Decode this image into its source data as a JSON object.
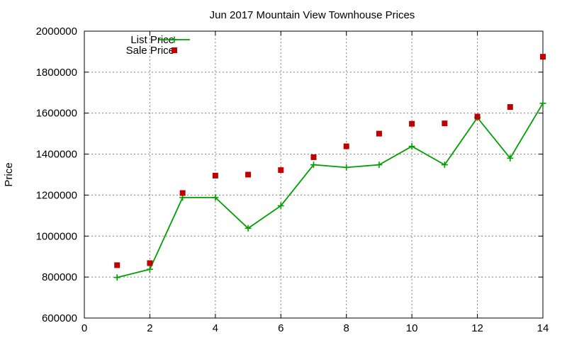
{
  "chart_data": {
    "type": "line",
    "title": "Jun 2017 Mountain View Townhouse Prices",
    "xlabel": "",
    "ylabel": "Price",
    "xlim": [
      0,
      14
    ],
    "ylim": [
      600000,
      2000000
    ],
    "x_ticks": [
      0,
      2,
      4,
      6,
      8,
      10,
      12,
      14
    ],
    "y_ticks": [
      600000,
      800000,
      1000000,
      1200000,
      1400000,
      1600000,
      1800000,
      2000000
    ],
    "grid": true,
    "legend_position": "top-left",
    "series": [
      {
        "name": "List Price",
        "style": "line-with-plus-markers",
        "color": "#00a000",
        "x": [
          1,
          2,
          3,
          4,
          5,
          6,
          7,
          8,
          9,
          10,
          11,
          12,
          13,
          14
        ],
        "y": [
          798000,
          838000,
          1188000,
          1188000,
          1038000,
          1148000,
          1348000,
          1335000,
          1348000,
          1438000,
          1348000,
          1578000,
          1380000,
          1648000
        ]
      },
      {
        "name": "Sale Price",
        "style": "square-markers",
        "color": "#c00000",
        "x": [
          1,
          2,
          3,
          4,
          5,
          6,
          7,
          8,
          9,
          10,
          11,
          12,
          13,
          14
        ],
        "y": [
          858000,
          868000,
          1210000,
          1295000,
          1300000,
          1322000,
          1385000,
          1438000,
          1500000,
          1548000,
          1550000,
          1583000,
          1630000,
          1875000
        ]
      }
    ]
  }
}
